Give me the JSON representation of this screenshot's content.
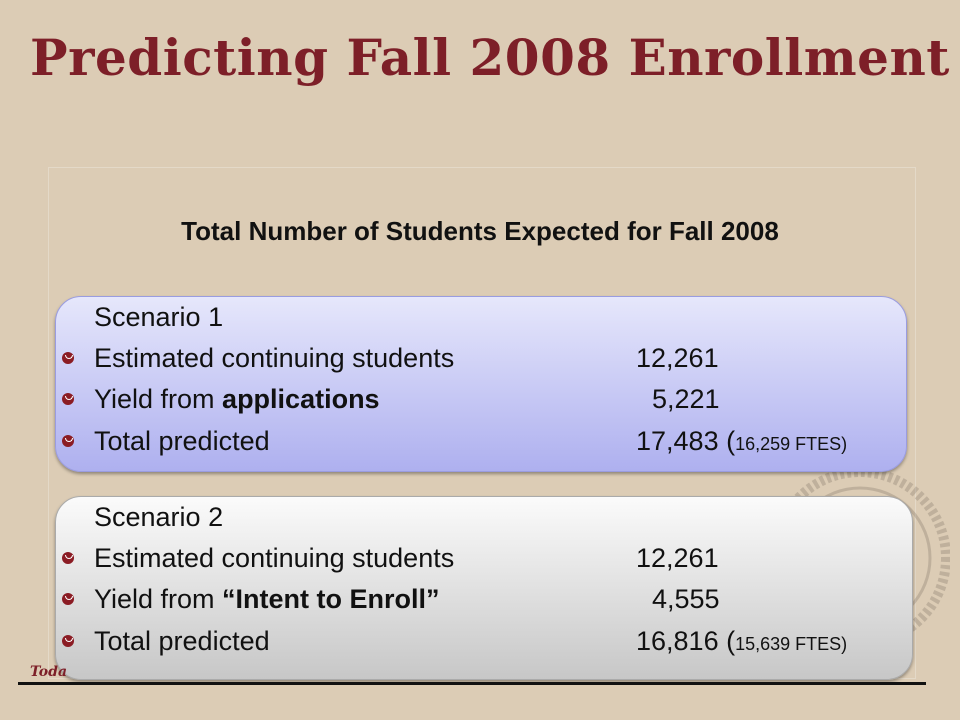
{
  "slide": {
    "title": "Predicting Fall 2008 Enrollment",
    "subtitle": "Total Number of Students Expected for Fall 2008",
    "footer_text": "Toda"
  },
  "scenario1": {
    "heading": "Scenario 1",
    "rows": [
      {
        "label": "Estimated continuing students",
        "value": "12,261"
      },
      {
        "label_prefix": "Yield from ",
        "label_bold": "applications",
        "value": "5,221"
      },
      {
        "label": "Total predicted",
        "value": "17,483 (",
        "ftes": "16,259 FTES)"
      }
    ]
  },
  "scenario2": {
    "heading": "Scenario 2",
    "rows": [
      {
        "label": "Estimated continuing students",
        "value": "12,261"
      },
      {
        "label_prefix": "Yield from ",
        "label_bold": "“Intent to Enroll”",
        "value": "4,555"
      },
      {
        "label": "Total predicted",
        "value": "16,816 (",
        "ftes": "15,639 FTES)"
      }
    ]
  },
  "colors": {
    "background": "#dcccb5",
    "title": "#7d1f28",
    "bullet": "#8b1c24",
    "scenario1_fill": "#c4c6f4",
    "scenario2_fill": "#e0e0e0"
  },
  "icons": {
    "bullet": "bullet-icon",
    "seal": "university-seal-icon"
  }
}
